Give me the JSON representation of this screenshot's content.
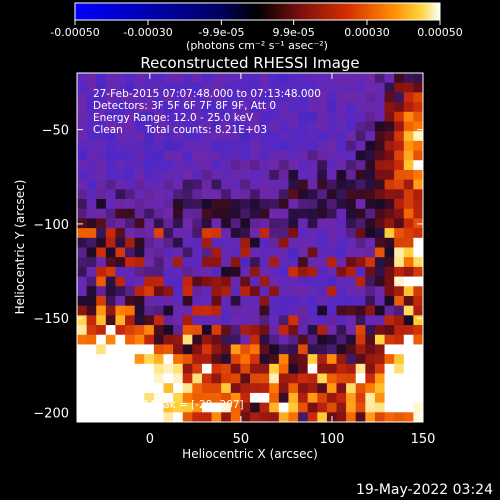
{
  "chart_data": {
    "type": "heatmap",
    "title": "Reconstructed RHESSI Image",
    "xlabel": "Heliocentric X (arcsec)",
    "ylabel": "Heliocentric Y (arcsec)",
    "xlim": [
      -40,
      150
    ],
    "ylim": [
      -205,
      -20
    ],
    "xticks": [
      0,
      50,
      100,
      150
    ],
    "yticks": [
      -50,
      -100,
      -150,
      -200
    ],
    "annotations": [
      "27-Feb-2015 07:07:48.000 to 07:13:48.000",
      "Detectors: 3F 5F 6F 7F 8F 9F, Att 0",
      "Energy Range: 12.0 - 25.0 keV",
      "Clean",
      "Total counts: 8.21E+03"
    ],
    "peak_label": "Position of Peak = [-28,-207]",
    "colorbar": {
      "range": [
        -0.0005,
        0.0005
      ],
      "tick_labels": [
        "-0.00050",
        "-0.00030",
        "-9.9e-05",
        "9.9e-05",
        "0.00030",
        "0.00050"
      ],
      "tick_values": [
        -0.0005,
        -0.0003,
        -9.9e-05,
        9.9e-05,
        0.0003,
        0.0005
      ],
      "unit_label": "(photons cm⁻² s⁻¹ asec⁻²)"
    },
    "colormap": [
      "#0000ff",
      "#000000",
      "#7f0f10",
      "#d63000",
      "#ff8800",
      "#ffd640",
      "#ffffff"
    ]
  },
  "footer_date": "19-May-2022 03:24"
}
